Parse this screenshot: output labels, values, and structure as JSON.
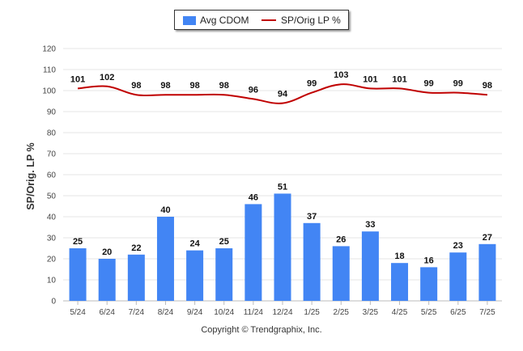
{
  "legend": {
    "bar_label": "Avg CDOM",
    "line_label": "SP/Orig LP %"
  },
  "footer": {
    "copyright": "Copyright © Trendgraphix, Inc."
  },
  "chart_data": {
    "type": "bar",
    "title": "",
    "xlabel": "",
    "ylabel": "SP/Orig. LP %",
    "ylim": [
      0,
      120
    ],
    "yticks": [
      0,
      10,
      20,
      30,
      40,
      50,
      60,
      70,
      80,
      90,
      100,
      110,
      120
    ],
    "grid": true,
    "legend_position": "top-center",
    "categories": [
      "5/24",
      "6/24",
      "7/24",
      "8/24",
      "9/24",
      "10/24",
      "11/24",
      "12/24",
      "1/25",
      "2/25",
      "3/25",
      "4/25",
      "5/25",
      "6/25",
      "7/25"
    ],
    "series": [
      {
        "name": "Avg CDOM",
        "type": "bar",
        "color": "#4285f4",
        "values": [
          25,
          20,
          22,
          40,
          24,
          25,
          46,
          51,
          37,
          26,
          33,
          18,
          16,
          23,
          27
        ]
      },
      {
        "name": "SP/Orig LP %",
        "type": "line",
        "color": "#c00000",
        "values": [
          101,
          102,
          98,
          98,
          98,
          98,
          96,
          94,
          99,
          103,
          101,
          101,
          99,
          99,
          98
        ]
      }
    ]
  }
}
